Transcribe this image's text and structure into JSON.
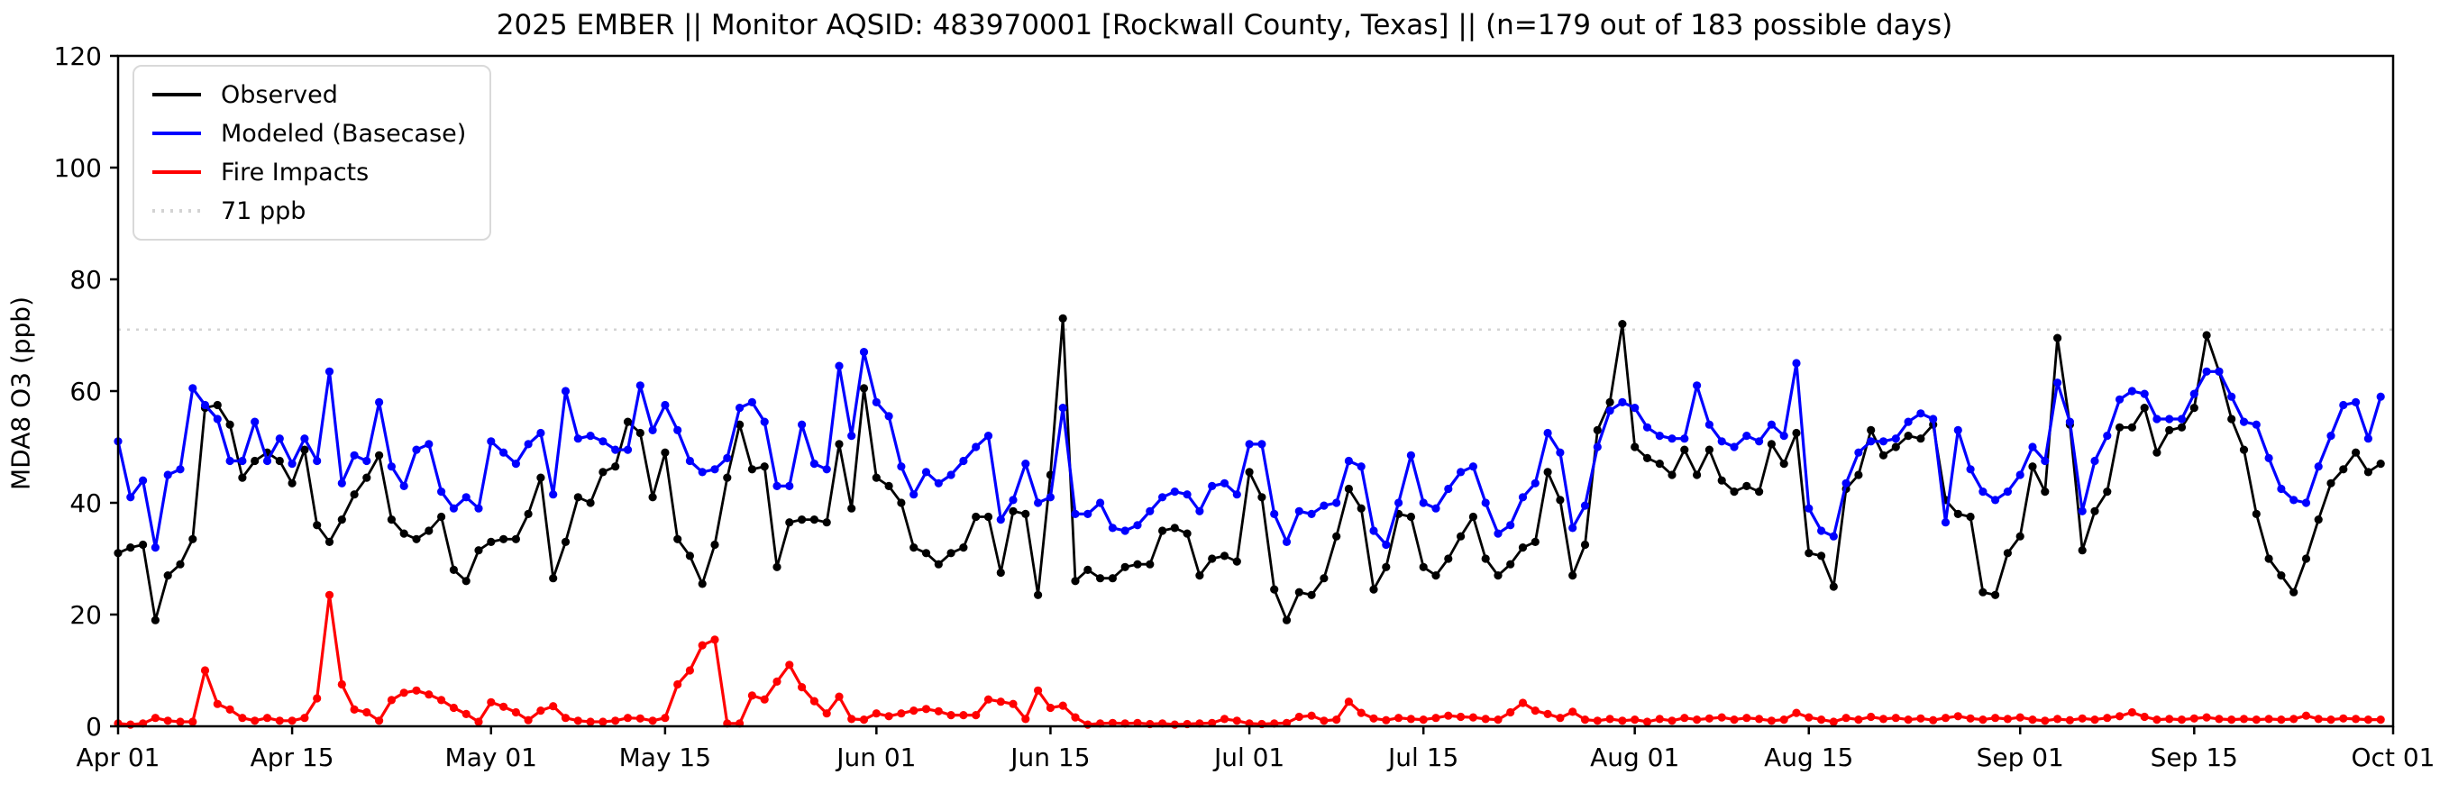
{
  "figure": {
    "title": "2025 EMBER || Monitor AQSID: 483970001 [Rockwall County, Texas] || (n=179 out of 183 possible days)",
    "ylabel": "MDA8 O3 (ppb)"
  },
  "chart_data": {
    "type": "line",
    "title": "2025 EMBER || Monitor AQSID: 483970001 [Rockwall County, Texas] || (n=179 out of 183 possible days)",
    "xlabel": "",
    "ylabel": "MDA8 O3 (ppb)",
    "ylim": [
      0,
      120
    ],
    "yticks": [
      0,
      20,
      40,
      60,
      80,
      100,
      120
    ],
    "grid": false,
    "legend_position": "upper left",
    "x_start_date": "Apr 01",
    "x_end_date": "Oct 01",
    "n_days": 183,
    "xticks": [
      {
        "day": 0,
        "label": "Apr 01"
      },
      {
        "day": 14,
        "label": "Apr 15"
      },
      {
        "day": 30,
        "label": "May 01"
      },
      {
        "day": 44,
        "label": "May 15"
      },
      {
        "day": 61,
        "label": "Jun 01"
      },
      {
        "day": 75,
        "label": "Jun 15"
      },
      {
        "day": 91,
        "label": "Jul 01"
      },
      {
        "day": 105,
        "label": "Jul 15"
      },
      {
        "day": 122,
        "label": "Aug 01"
      },
      {
        "day": 136,
        "label": "Aug 15"
      },
      {
        "day": 153,
        "label": "Sep 01"
      },
      {
        "day": 167,
        "label": "Sep 15"
      },
      {
        "day": 183,
        "label": "Oct 01"
      }
    ],
    "threshold": {
      "value": 71,
      "label": "71 ppb",
      "color": "#d3d3d3",
      "style": "dotted"
    },
    "series": [
      {
        "name": "Observed",
        "color": "#000000",
        "values": [
          31,
          32,
          32.5,
          19,
          27,
          29,
          33.5,
          57,
          57.5,
          54,
          44.5,
          47.5,
          49,
          47.5,
          43.5,
          49.5,
          36,
          33,
          37,
          41.5,
          44.5,
          48.5,
          37,
          34.5,
          33.5,
          35,
          37.5,
          28,
          26,
          31.5,
          33,
          33.5,
          33.5,
          38,
          44.5,
          26.5,
          33,
          41,
          40,
          45.5,
          46.5,
          54.5,
          52.5,
          41,
          49,
          33.5,
          30.5,
          25.5,
          32.5,
          44.5,
          54,
          46,
          46.5,
          28.5,
          36.5,
          37,
          37,
          36.5,
          50.5,
          39,
          60.5,
          44.5,
          43,
          40,
          32,
          31,
          29,
          31,
          32,
          37.5,
          37.5,
          27.5,
          38.5,
          38,
          23.5,
          45,
          73,
          26,
          28,
          26.5,
          26.5,
          28.5,
          29,
          29,
          35,
          35.5,
          34.5,
          27,
          30,
          30.5,
          29.5,
          45.5,
          41,
          24.5,
          19,
          24,
          23.5,
          26.5,
          34,
          42.5,
          39,
          24.5,
          28.5,
          38,
          37.5,
          28.5,
          27,
          30,
          34,
          37.5,
          30,
          27,
          29,
          32,
          33,
          45.5,
          40.5,
          27,
          32.5,
          53,
          58,
          72,
          50,
          48,
          47,
          45,
          49.5,
          45,
          49.5,
          44,
          42,
          43,
          42,
          50.5,
          47,
          52.5,
          31,
          30.5,
          25,
          42.5,
          45,
          53,
          48.5,
          50,
          52,
          51.5,
          54,
          40.5,
          38,
          37.5,
          24,
          23.5,
          31,
          34,
          46.5,
          42,
          69.5,
          54,
          31.5,
          38.5,
          42,
          53.5,
          53.5,
          57,
          49,
          53,
          53.5,
          57,
          70,
          63.5,
          55,
          49.5,
          38,
          30,
          27,
          24,
          30,
          37,
          43.5,
          46,
          49,
          45.5,
          47
        ]
      },
      {
        "name": "Modeled (Basecase)",
        "color": "#0000ff",
        "values": [
          51,
          41,
          44,
          32,
          45,
          46,
          60.5,
          57.5,
          55,
          47.5,
          47.5,
          54.5,
          47.5,
          51.5,
          47,
          51.5,
          47.5,
          63.5,
          43.5,
          48.5,
          47.5,
          58,
          46.5,
          43,
          49.5,
          50.5,
          42,
          39,
          41,
          39,
          51,
          49,
          47,
          50.5,
          52.5,
          41.5,
          60,
          51.5,
          52,
          51,
          49.5,
          49.5,
          61,
          53,
          57.5,
          53,
          47.5,
          45.5,
          46,
          48,
          57,
          58,
          54.5,
          43,
          43,
          54,
          47,
          46,
          64.5,
          52,
          67,
          58,
          55.5,
          46.5,
          41.5,
          45.5,
          43.5,
          45,
          47.5,
          50,
          52,
          37,
          40.5,
          47,
          40,
          41,
          57,
          38,
          38,
          40,
          35.5,
          35,
          36,
          38.5,
          41,
          42,
          41.5,
          38.5,
          43,
          43.5,
          41.5,
          50.5,
          50.5,
          38,
          33,
          38.5,
          38,
          39.5,
          40,
          47.5,
          46.5,
          35,
          32.5,
          40,
          48.5,
          40,
          39,
          42.5,
          45.5,
          46.5,
          40,
          34.5,
          36,
          41,
          43.5,
          52.5,
          49,
          35.5,
          39.5,
          50,
          56.5,
          58,
          57,
          53.5,
          52,
          51.5,
          51.5,
          61,
          54,
          51,
          50,
          52,
          51,
          54,
          52,
          65,
          39,
          35,
          34,
          43.5,
          49,
          51,
          51,
          51.5,
          54.5,
          56,
          55,
          36.5,
          53,
          46,
          42,
          40.5,
          42,
          45,
          50,
          47.5,
          61.5,
          54.5,
          38.5,
          47.5,
          52,
          58.5,
          60,
          59.5,
          55,
          55,
          55,
          59.5,
          63.5,
          63.5,
          59,
          54.5,
          54,
          48,
          42.5,
          40.5,
          40,
          46.5,
          52,
          57.5,
          58,
          51.5,
          59
        ]
      },
      {
        "name": "Fire Impacts",
        "color": "#ff0000",
        "values": [
          0.5,
          0.3,
          0.5,
          1.5,
          1,
          0.8,
          0.8,
          10,
          4,
          3,
          1.5,
          1,
          1.5,
          1,
          1,
          1.5,
          5,
          23.5,
          7.5,
          3,
          2.5,
          1,
          4.7,
          6,
          6.4,
          5.7,
          4.7,
          3.3,
          2.2,
          0.8,
          4.3,
          3.5,
          2.5,
          1.1,
          2.8,
          3.6,
          1.5,
          1,
          0.8,
          0.8,
          1,
          1.5,
          1.4,
          1,
          1.5,
          7.5,
          10,
          14.5,
          15.5,
          0.5,
          0.5,
          5.5,
          4.8,
          8,
          11,
          7,
          4.5,
          2.3,
          5.3,
          1.3,
          1.2,
          2.3,
          1.8,
          2.3,
          2.8,
          3.1,
          2.7,
          2,
          2,
          2,
          4.8,
          4.4,
          4,
          1.3,
          6.4,
          3.3,
          3.7,
          1.6,
          0.3,
          0.5,
          0.6,
          0.5,
          0.6,
          0.4,
          0.5,
          0.3,
          0.4,
          0.5,
          0.6,
          1.3,
          1,
          0.5,
          0.4,
          0.5,
          0.6,
          1.7,
          1.9,
          1,
          1.2,
          4.4,
          2.4,
          1.4,
          1.1,
          1.5,
          1.3,
          1.2,
          1.5,
          1.9,
          1.7,
          1.6,
          1.3,
          1.2,
          2.5,
          4.2,
          2.8,
          2.2,
          1.5,
          2.6,
          1.2,
          1,
          1.3,
          1,
          1.2,
          0.8,
          1.3,
          1,
          1.5,
          1.2,
          1.4,
          1.6,
          1.2,
          1.5,
          1.3,
          1,
          1.2,
          2.4,
          1.6,
          1.2,
          0.8,
          1.5,
          1.2,
          1.7,
          1.3,
          1.5,
          1.2,
          1.4,
          1.1,
          1.5,
          1.8,
          1.4,
          1.2,
          1.5,
          1.3,
          1.6,
          1.2,
          1,
          1.3,
          1.1,
          1.4,
          1.2,
          1.5,
          1.8,
          2.5,
          1.7,
          1.2,
          1.3,
          1.2,
          1.4,
          1.6,
          1.3,
          1.2,
          1.3,
          1.2,
          1.3,
          1.2,
          1.3,
          1.9,
          1.3,
          1.2,
          1.4,
          1.3,
          1.2,
          1.2
        ]
      }
    ]
  }
}
